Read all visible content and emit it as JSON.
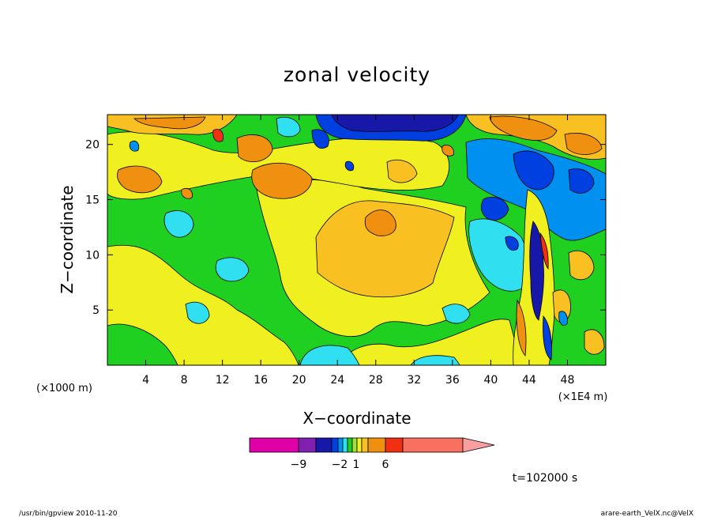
{
  "chart_data": {
    "type": "heatmap",
    "title": "zonal velocity",
    "xlabel": "X−coordinate",
    "ylabel": "Z−coordinate",
    "x_unit": "(×1000 m)",
    "x_scale_note": "(×1E4 m)",
    "xlim": [
      0,
      52
    ],
    "ylim": [
      0,
      22.7
    ],
    "x_ticks": [
      "4",
      "8",
      "12",
      "16",
      "20",
      "24",
      "28",
      "32",
      "36",
      "40",
      "44",
      "48"
    ],
    "y_ticks": [
      "5",
      "10",
      "15",
      "20"
    ],
    "time_label": "t=102000 s",
    "colorbar": {
      "labels": [
        "−9",
        "−2",
        "1",
        "6"
      ],
      "colors": [
        "#e000a8",
        "#8020b0",
        "#1818a8",
        "#0040e0",
        "#0090f0",
        "#30e0f0",
        "#20d020",
        "#a0e040",
        "#f0f020",
        "#f8c020",
        "#f09010",
        "#f03010",
        "#f87060",
        "#f8a0a0"
      ]
    },
    "footer_left": "/usr/bin/gpview   2010-11-20",
    "footer_right": "arare-earth_VelX.nc@VelX"
  }
}
